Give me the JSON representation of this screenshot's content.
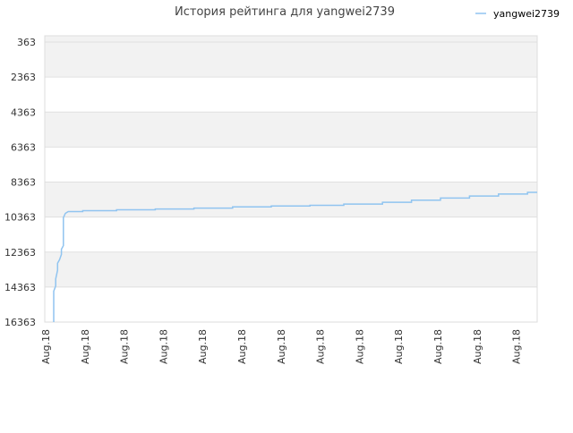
{
  "chart_data": {
    "type": "line",
    "title": "История рейтинга для yangwei2739",
    "ylabel": "",
    "xlabel": "",
    "y_inverted": true,
    "ylim": [
      363,
      16363
    ],
    "y_ticks": [
      "363",
      "2363",
      "4363",
      "6363",
      "8363",
      "10363",
      "12363",
      "14363",
      "16363"
    ],
    "y_tick_values": [
      363,
      2363,
      4363,
      6363,
      8363,
      10363,
      12363,
      14363,
      16363
    ],
    "x_ticks": [
      "Aug.18",
      "Aug.18",
      "Aug.18",
      "Aug.18",
      "Aug.18",
      "Aug.18",
      "Aug.18",
      "Aug.18",
      "Aug.18",
      "Aug.18",
      "Aug.18",
      "Aug.18",
      "Aug.18"
    ],
    "grid": true,
    "grid_bands": "alternating",
    "legend_position": "top-right",
    "series": [
      {
        "name": "yangwei2739",
        "color": "#90c4f0",
        "points": [
          [
            0.0,
            16363
          ],
          [
            0.0,
            14600
          ],
          [
            0.004,
            14300
          ],
          [
            0.004,
            13900
          ],
          [
            0.008,
            13400
          ],
          [
            0.008,
            13000
          ],
          [
            0.012,
            12800
          ],
          [
            0.016,
            12500
          ],
          [
            0.016,
            12200
          ],
          [
            0.02,
            12000
          ],
          [
            0.02,
            10400
          ],
          [
            0.024,
            10150
          ],
          [
            0.03,
            10050
          ],
          [
            0.06,
            10050
          ],
          [
            0.06,
            10000
          ],
          [
            0.13,
            10000
          ],
          [
            0.13,
            9950
          ],
          [
            0.21,
            9950
          ],
          [
            0.21,
            9900
          ],
          [
            0.29,
            9900
          ],
          [
            0.29,
            9850
          ],
          [
            0.37,
            9850
          ],
          [
            0.37,
            9780
          ],
          [
            0.45,
            9780
          ],
          [
            0.45,
            9730
          ],
          [
            0.53,
            9730
          ],
          [
            0.53,
            9690
          ],
          [
            0.6,
            9690
          ],
          [
            0.6,
            9620
          ],
          [
            0.68,
            9620
          ],
          [
            0.68,
            9520
          ],
          [
            0.74,
            9520
          ],
          [
            0.74,
            9400
          ],
          [
            0.8,
            9400
          ],
          [
            0.8,
            9280
          ],
          [
            0.86,
            9280
          ],
          [
            0.86,
            9160
          ],
          [
            0.92,
            9160
          ],
          [
            0.92,
            9050
          ],
          [
            0.98,
            9050
          ],
          [
            0.98,
            8950
          ],
          [
            1.0,
            8950
          ]
        ]
      }
    ],
    "colors": {
      "band": "#f2f2f2",
      "grid": "#e0e0e0",
      "axis_text": "#333333",
      "title_text": "#444444"
    }
  }
}
